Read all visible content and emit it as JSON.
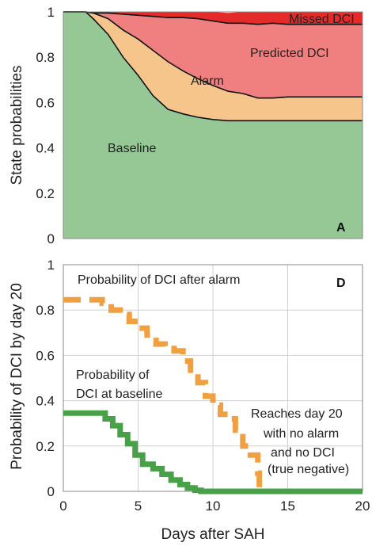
{
  "colors": {
    "baseline": "#96c896",
    "alarm": "#f5c58b",
    "predicted": "#f08080",
    "missed": "#e52a2a",
    "dci_after_alarm": "#f0a040",
    "dci_at_baseline": "#48a048",
    "grid": "#d0d0d0",
    "line": "#111111"
  },
  "chart_data": [
    {
      "type": "area",
      "panel_label": "A",
      "ylabel": "State probabilities",
      "xlabel": "",
      "xlim": [
        0,
        20
      ],
      "ylim": [
        0,
        1
      ],
      "yticks": [
        "0",
        "0.2",
        "0.4",
        "0.6",
        "0.8",
        "1"
      ],
      "grid": false,
      "x": [
        0,
        1.5,
        2,
        3,
        4,
        5,
        6,
        7,
        8,
        9,
        10,
        11,
        12,
        13,
        14,
        15,
        16,
        17,
        18,
        19,
        20
      ],
      "series": [
        {
          "name": "Baseline",
          "values": [
            1.0,
            1.0,
            0.97,
            0.9,
            0.8,
            0.72,
            0.63,
            0.57,
            0.55,
            0.535,
            0.525,
            0.52,
            0.52,
            0.52,
            0.52,
            0.52,
            0.52,
            0.52,
            0.52,
            0.52,
            0.52
          ]
        },
        {
          "name": "Alarm",
          "values": [
            0.0,
            0.0,
            0.025,
            0.07,
            0.12,
            0.16,
            0.2,
            0.21,
            0.19,
            0.17,
            0.15,
            0.13,
            0.12,
            0.1,
            0.1,
            0.105,
            0.105,
            0.105,
            0.105,
            0.105,
            0.105
          ]
        },
        {
          "name": "Predicted DCI",
          "values": [
            0.0,
            0.0,
            0.0,
            0.025,
            0.07,
            0.105,
            0.15,
            0.195,
            0.235,
            0.265,
            0.285,
            0.3,
            0.31,
            0.325,
            0.33,
            0.32,
            0.32,
            0.32,
            0.32,
            0.32,
            0.32
          ]
        },
        {
          "name": "Missed DCI",
          "values": [
            0.0,
            0.0,
            0.005,
            0.005,
            0.01,
            0.015,
            0.02,
            0.025,
            0.025,
            0.03,
            0.04,
            0.045,
            0.05,
            0.055,
            0.05,
            0.055,
            0.055,
            0.055,
            0.055,
            0.055,
            0.055
          ]
        }
      ]
    },
    {
      "type": "line",
      "panel_label": "D",
      "xlabel": "Days after SAH",
      "ylabel": "Probability of DCI by day 20",
      "xlim": [
        0,
        20
      ],
      "ylim": [
        0,
        1
      ],
      "xticks": [
        "0",
        "5",
        "10",
        "15",
        "20"
      ],
      "yticks": [
        "0",
        "0.2",
        "0.4",
        "0.6",
        "0.8",
        "1"
      ],
      "grid": true,
      "series": [
        {
          "name": "Probability of DCI after alarm",
          "style": "dashed",
          "x": [
            0,
            2,
            2.6,
            3.2,
            3.8,
            4.4,
            5,
            5.6,
            6.2,
            6.8,
            7.4,
            8,
            8.5,
            9,
            9.5,
            10,
            10.5,
            11,
            11.5,
            12,
            12.5,
            13,
            13.1,
            13.2
          ],
          "values": [
            0.845,
            0.845,
            0.83,
            0.8,
            0.78,
            0.75,
            0.72,
            0.69,
            0.65,
            0.63,
            0.62,
            0.575,
            0.52,
            0.48,
            0.42,
            0.38,
            0.34,
            0.32,
            0.27,
            0.2,
            0.16,
            0.08,
            0.01,
            0.0
          ]
        },
        {
          "name": "Probability of DCI at baseline",
          "style": "solid",
          "x": [
            0,
            2.2,
            2.8,
            3.3,
            3.8,
            4.3,
            4.8,
            5.3,
            6,
            6.6,
            7.2,
            7.8,
            8.3,
            8.8,
            9.2,
            20
          ],
          "values": [
            0.345,
            0.345,
            0.32,
            0.29,
            0.25,
            0.21,
            0.16,
            0.12,
            0.1,
            0.075,
            0.05,
            0.03,
            0.015,
            0.005,
            0.0,
            0.0
          ]
        }
      ],
      "annotations": [
        "Probability of DCI after alarm",
        "Probability of",
        "DCI at baseline",
        "Reaches day 20",
        "with no alarm",
        "and no DCI",
        "(true negative)"
      ]
    }
  ]
}
